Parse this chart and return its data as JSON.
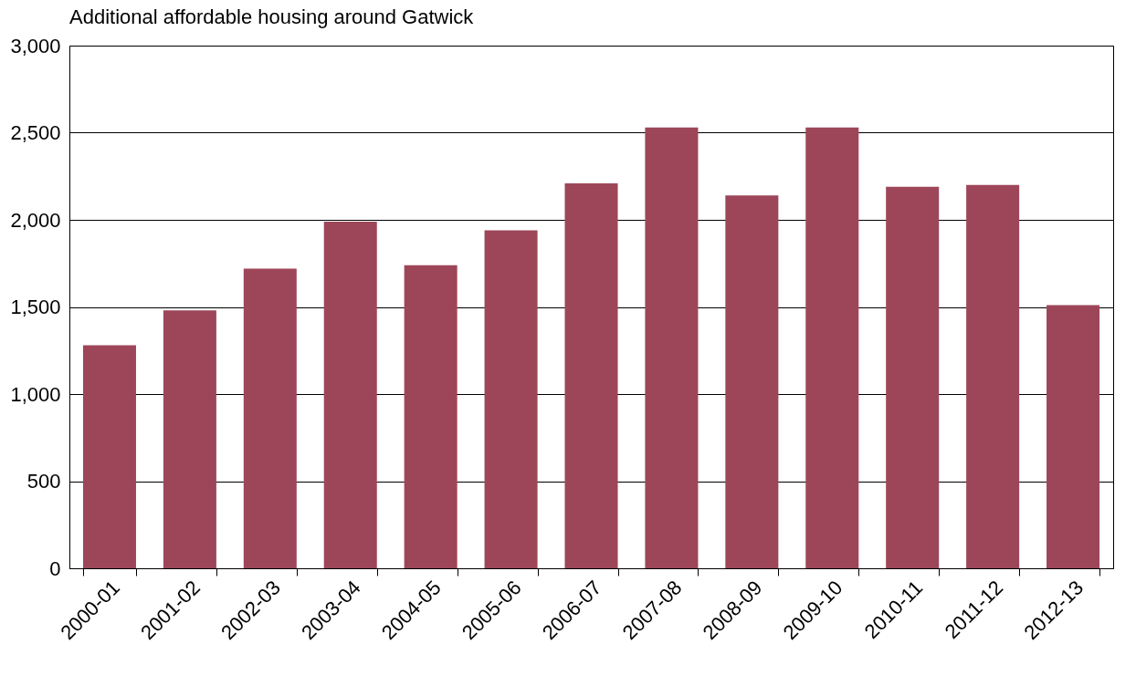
{
  "chart_data": {
    "type": "bar",
    "title": "Additional affordable housing around Gatwick",
    "categories": [
      "2000-01",
      "2001-02",
      "2002-03",
      "2003-04",
      "2004-05",
      "2005-06",
      "2006-07",
      "2007-08",
      "2008-09",
      "2009-10",
      "2010-11",
      "2011-12",
      "2012-13"
    ],
    "values": [
      1280,
      1480,
      1720,
      1990,
      1740,
      1940,
      2210,
      2530,
      2140,
      2530,
      2190,
      2200,
      1510
    ],
    "color": "#9e4659",
    "ylim": [
      0,
      3000
    ],
    "yticks": [
      {
        "value": 0,
        "label": "0"
      },
      {
        "value": 500,
        "label": "500"
      },
      {
        "value": 1000,
        "label": "1,000"
      },
      {
        "value": 1500,
        "label": "1,500"
      },
      {
        "value": 2000,
        "label": "2,000"
      },
      {
        "value": 2500,
        "label": "2,500"
      },
      {
        "value": 3000,
        "label": "3,000"
      }
    ],
    "grid": "y"
  }
}
